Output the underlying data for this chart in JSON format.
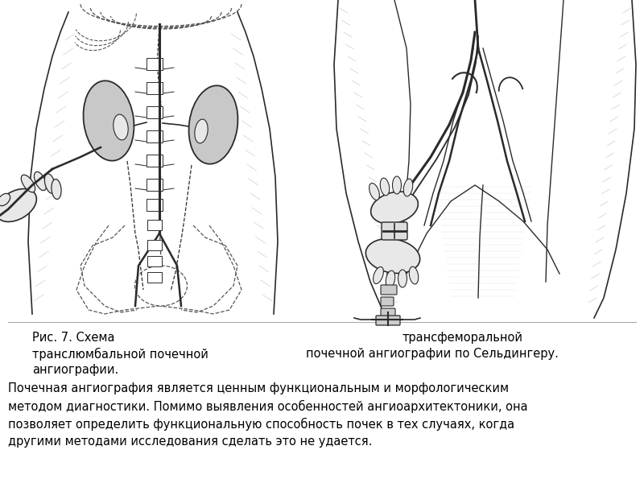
{
  "bg_color": "#ffffff",
  "fig_width": 8.0,
  "fig_height": 6.0,
  "caption_left_line1": "Рис. 7. Схема",
  "caption_left_line2": "транслюмбальной почечной",
  "caption_left_line3": "ангиографии.",
  "caption_right_line1": "трансфеморальной",
  "caption_right_line2": "почечной ангиографии по Сельдингеру.",
  "body_text_line1": "Почечная ангиография является ценным функциональным и морфологическим",
  "body_text_line2": "методом диагностики. Помимо выявления особенностей ангиоархитектоники, она",
  "body_text_line3": "позволяет определить функциональную способность почек в тех случаях, когда",
  "body_text_line4": "другими методами исследования сделать это не удается.",
  "caption_fontsize": 10.5,
  "body_fontsize": 10.5,
  "sketch_line_color": "#2a2a2a",
  "sketch_shade_color": "#c8c8c8",
  "sketch_light_color": "#e8e8e8",
  "dashed_color": "#555555"
}
